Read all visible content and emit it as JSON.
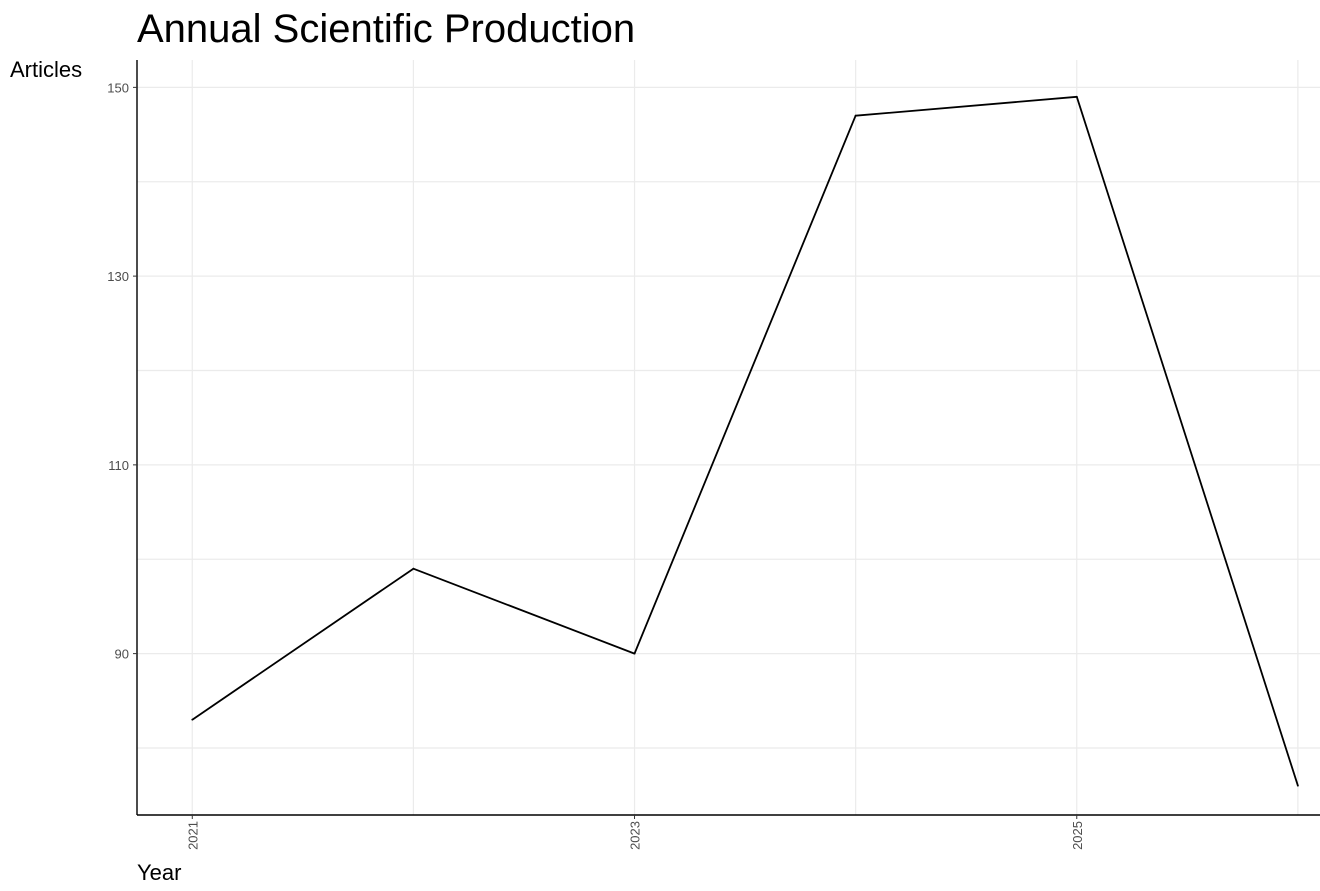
{
  "chart_data": {
    "type": "line",
    "title": "Annual Scientific Production",
    "xlabel": "Year",
    "ylabel": "Articles",
    "x": [
      2021,
      2022,
      2023,
      2024,
      2025,
      2026
    ],
    "series": [
      {
        "values": [
          83,
          99,
          90,
          147,
          149,
          76
        ]
      }
    ],
    "xlim": [
      2020.75,
      2026.1
    ],
    "ylim": [
      72.9,
      152.9
    ],
    "x_ticks": [
      2021,
      2023,
      2025
    ],
    "x_tick_labels": [
      "2021",
      "2023",
      "2025"
    ],
    "y_ticks": [
      90,
      110,
      130,
      150
    ],
    "y_tick_labels": [
      "90",
      "110",
      "130",
      "150"
    ],
    "x_minor_ticks": [
      2022,
      2024,
      2026
    ],
    "y_minor_ticks": [
      80,
      100,
      120,
      140
    ],
    "grid": true,
    "legend": "none",
    "colors": {
      "line": "#000000",
      "grid": "#ebebeb",
      "axis": "#000000",
      "tick_text": "#4d4d4d"
    }
  }
}
